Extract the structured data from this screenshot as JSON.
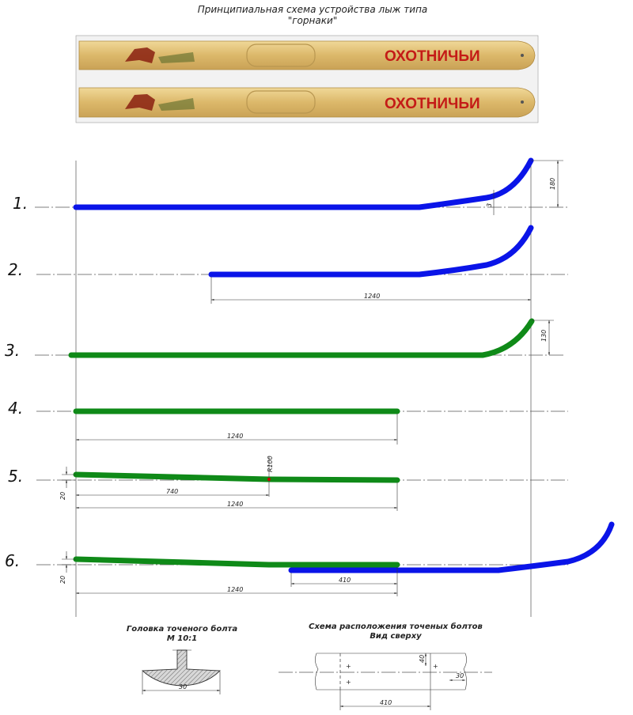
{
  "header": {
    "title_line1": "Принципиальная схема устройства лыж   типа",
    "title_line2": "\"горнаки\""
  },
  "photo": {
    "brand": "ОХОТНИЧЬИ",
    "wood_color": "#e2c27a",
    "brand_color": "#c41b17"
  },
  "rows": [
    {
      "number": "1.",
      "dims": [
        "180",
        "3"
      ]
    },
    {
      "number": "2.",
      "dims": [
        "1240"
      ]
    },
    {
      "number": "3.",
      "dims": [
        "130"
      ]
    },
    {
      "number": "4.",
      "dims": [
        "1240"
      ]
    },
    {
      "number": "5.",
      "dims": [
        "R100",
        "20",
        "740",
        "1240"
      ]
    },
    {
      "number": "6.",
      "dims": [
        "20",
        "410",
        "1240"
      ]
    }
  ],
  "colors": {
    "blue": "#0a14e8",
    "green": "#0f8a18"
  },
  "bolt_head": {
    "caption1": "Головка точеного болта",
    "caption2": "М 10:1",
    "dim": "30"
  },
  "bolt_layout": {
    "caption1": "Схема расположения точеных болтов",
    "caption2": "Вид сверху",
    "dims": [
      "40",
      "30",
      "410"
    ]
  }
}
